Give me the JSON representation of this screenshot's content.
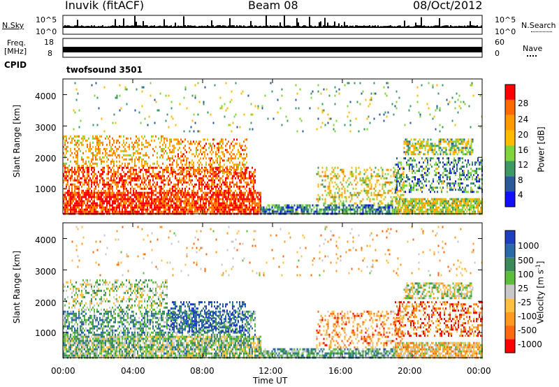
{
  "header": {
    "title_left": "Inuvik (fitACF)",
    "title_center": "Beam 08",
    "title_right": "08/Oct/2012"
  },
  "top_panels": {
    "nsky_label": "N.Sky",
    "nsky_ticks": [
      "10^5",
      "10^0"
    ],
    "nsearch_label": "N.Search",
    "nsearch_ticks": [
      "10^5",
      "10^0"
    ],
    "freq_label_line1": "Freq.",
    "freq_label_line2": "[MHz]",
    "freq_ticks": [
      "18",
      "8"
    ],
    "nave_label": "Nave",
    "nave_ticks": [
      "60",
      "0"
    ],
    "cpid_label": "CPID",
    "cpid_value": "twofsound 3501"
  },
  "chart_data": [
    {
      "type": "heatmap",
      "name": "power",
      "ylabel": "Slant Range [km]",
      "ylim": [
        200,
        4500
      ],
      "yticks": [
        1000,
        2000,
        3000,
        4000
      ],
      "xlim": [
        0,
        24
      ],
      "colorbar": {
        "label": "Power [dB]",
        "ticks": [
          "28",
          "24",
          "20",
          "16",
          "12",
          "8",
          "4"
        ],
        "colors": [
          "#ff0000",
          "#ff6a00",
          "#ff9900",
          "#ffbb00",
          "#7fd63a",
          "#3c9a64",
          "#2a5a9c",
          "#1010ff"
        ]
      }
    },
    {
      "type": "heatmap",
      "name": "velocity",
      "ylabel": "Slant Range [km]",
      "ylim": [
        200,
        4500
      ],
      "yticks": [
        1000,
        2000,
        3000,
        4000
      ],
      "xlim": [
        0,
        24
      ],
      "xlabel": "Time UT",
      "xticks": [
        "00:00",
        "04:00",
        "08:00",
        "12:00",
        "16:00",
        "20:00",
        "00:00"
      ],
      "colorbar": {
        "label": "Velocity [m s",
        "label_sup": "-1",
        "label_end": "]",
        "ticks": [
          "1000",
          "500",
          "100",
          "25",
          "-25",
          "-100",
          "-500",
          "-1000"
        ],
        "colors": [
          "#1e3fbf",
          "#2a6aaa",
          "#3c8a5a",
          "#5cbf3c",
          "#c8c8c8",
          "#ffc040",
          "#ff9a20",
          "#ff6a10",
          "#ff0000"
        ]
      }
    }
  ]
}
